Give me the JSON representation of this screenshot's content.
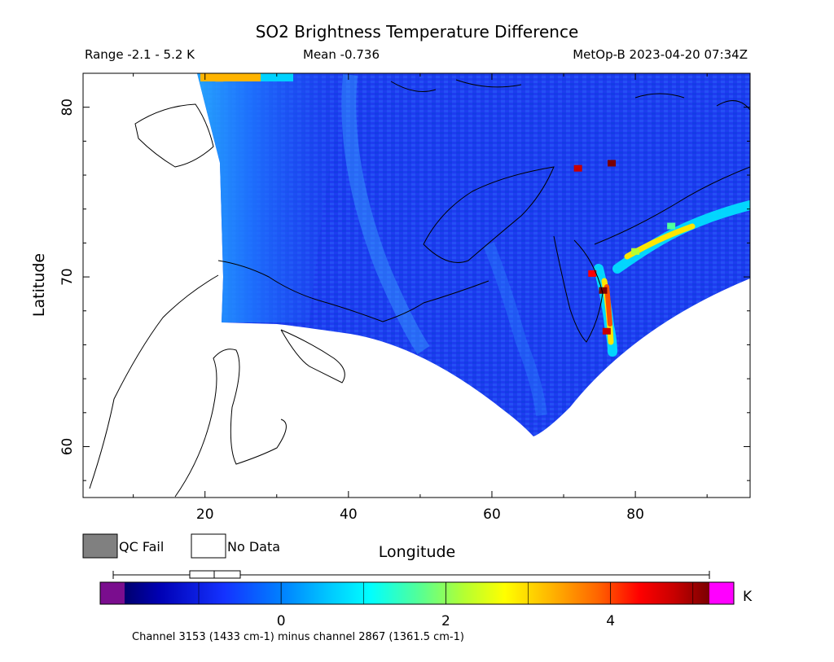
{
  "chart_data": {
    "type": "heatmap",
    "title": "SO2 Brightness Temperature Difference",
    "stats": {
      "range": "Range -2.1 - 5.2 K",
      "mean": "Mean -0.736",
      "satellite_time": "MetOp-B 2023-04-20 07:34Z"
    },
    "xlabel": "Longitude",
    "ylabel": "Latitude",
    "xlim": [
      3,
      96
    ],
    "ylim": [
      57,
      82
    ],
    "x_ticks": [
      20,
      40,
      60,
      80
    ],
    "y_ticks": [
      60,
      70,
      80
    ],
    "data_range": {
      "min": -2.1,
      "max": 5.2,
      "mean": -0.736,
      "units": "K"
    },
    "hotspots": [
      {
        "lon": 75.5,
        "lat": 69.2,
        "value": 5.0
      },
      {
        "lon": 76.0,
        "lat": 66.8,
        "value": 4.2
      },
      {
        "lon": 74.0,
        "lat": 70.2,
        "value": 3.9
      },
      {
        "lon": 76.7,
        "lat": 76.7,
        "value": 4.8
      },
      {
        "lon": 72.0,
        "lat": 76.4,
        "value": 4.5
      },
      {
        "lon": 80.0,
        "lat": 71.5,
        "value": 2.0
      },
      {
        "lon": 85.0,
        "lat": 73.0,
        "value": 1.2
      },
      {
        "lon": 22.0,
        "lat": 81.7,
        "value": 2.9
      }
    ],
    "colorbar": {
      "label": "K",
      "ticks": [
        0,
        2,
        4
      ],
      "vmin": -1.9,
      "vmax": 5.2,
      "colors": [
        "#7a0d8e",
        "#00006e",
        "#0000b4",
        "#1432ff",
        "#0082ff",
        "#00c8ff",
        "#00ffff",
        "#50ff9b",
        "#b4ff32",
        "#ffff00",
        "#ffb400",
        "#ff6400",
        "#ff0000",
        "#c80000",
        "#7a0000",
        "#ff00ff"
      ]
    },
    "legend": {
      "qc_fail": {
        "label": "QC Fail",
        "color": "#808080"
      },
      "no_data": {
        "label": "No Data",
        "color": "#ffffff"
      }
    },
    "footnote": "Channel 3153 (1433 cm-1) minus channel 2867 (1361.5 cm-1)"
  }
}
